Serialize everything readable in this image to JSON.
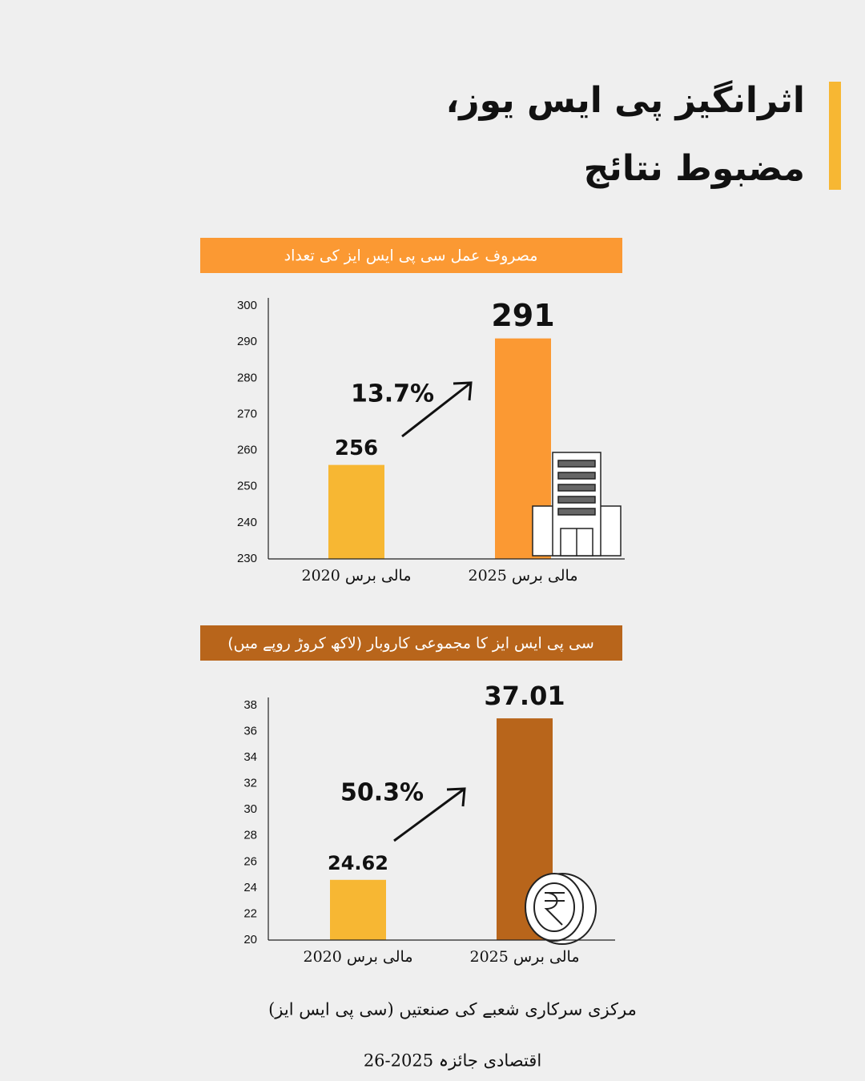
{
  "header": {
    "title_lines": [
      "اثرانگیز پی ایس یوز،",
      "مضبوط نتائج"
    ]
  },
  "chart_data": [
    {
      "type": "bar",
      "title": "مصروف عمل سی پی ایس ایز کی تعداد",
      "title_color": "#fb9933",
      "categories": [
        "مالی برس 2020",
        "مالی برس 2025"
      ],
      "values": [
        256,
        291
      ],
      "colors": [
        "#f7b733",
        "#fb9933"
      ],
      "annotation": "13.7%",
      "ylim": [
        230,
        300
      ],
      "yticks": [
        230,
        240,
        250,
        260,
        270,
        280,
        290,
        300
      ]
    },
    {
      "type": "bar",
      "title": "سی پی ایس ایز کا مجموعی کاروبار (لاکھ کروڑ روپے میں)",
      "title_color": "#b8651b",
      "categories": [
        "مالی برس 2020",
        "مالی برس 2025"
      ],
      "values": [
        24.62,
        37.01
      ],
      "colors": [
        "#f7b733",
        "#b8651b"
      ],
      "annotation": "50.3%",
      "ylim": [
        20,
        38
      ],
      "yticks": [
        20,
        22,
        24,
        26,
        28,
        30,
        32,
        34,
        36,
        38
      ]
    }
  ],
  "footer": {
    "source": "مرکزی سرکاری شعبے کی صنعتیں (سی پی ایس ایز)",
    "report": "اقتصادی جائزہ 2025-26"
  }
}
